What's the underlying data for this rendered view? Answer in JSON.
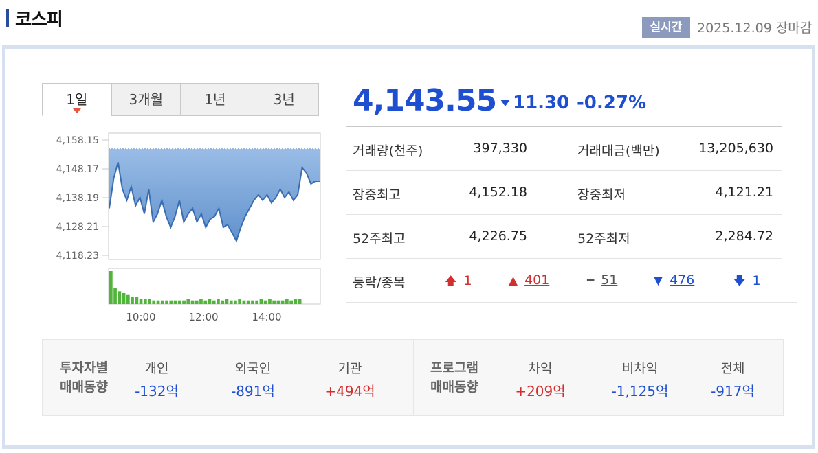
{
  "header": {
    "title": "코스피",
    "realtime_badge": "실시간",
    "status": "2025.12.09 장마감"
  },
  "tabs": [
    "1일",
    "3개월",
    "1년",
    "3년"
  ],
  "quote": {
    "price": "4,143.55",
    "change": "11.30",
    "change_pct": "-0.27%",
    "direction": "down"
  },
  "stats": [
    {
      "k1": "거래량(천주)",
      "v1": "397,330",
      "k2": "거래대금(백만)",
      "v2": "13,205,630"
    },
    {
      "k1": "장중최고",
      "v1": "4,152.18",
      "k2": "장중최저",
      "v2": "4,121.21"
    },
    {
      "k1": "52주최고",
      "v1": "4,226.75",
      "k2": "52주최저",
      "v2": "2,284.72"
    }
  ],
  "breadth": {
    "label": "등락/종목",
    "upper_limit": "1",
    "up": "401",
    "unchanged": "51",
    "down": "476",
    "lower_limit": "1"
  },
  "investor": {
    "title_line1": "투자자별",
    "title_line2": "매매동향",
    "cols": [
      {
        "label": "개인",
        "value": "-132억"
      },
      {
        "label": "외국인",
        "value": "-891억"
      },
      {
        "label": "기관",
        "value": "+494억"
      }
    ]
  },
  "program": {
    "title_line1": "프로그램",
    "title_line2": "매매동향",
    "cols": [
      {
        "label": "차익",
        "value": "+209억"
      },
      {
        "label": "비차익",
        "value": "-1,125억"
      },
      {
        "label": "전체",
        "value": "-917억"
      }
    ]
  },
  "colors": {
    "down": "#1f4fd1",
    "up": "#d32f2f",
    "line": "#3a6db3",
    "volume": "#52b53b",
    "reference": "#7f9fd6"
  },
  "chart_data": {
    "type": "area",
    "y_ticks": [
      "4,158.15",
      "4,148.17",
      "4,138.19",
      "4,128.21",
      "4,118.23"
    ],
    "x_ticks": [
      "10:00",
      "12:00",
      "14:00"
    ],
    "ylim": [
      4118.23,
      4158.15
    ],
    "reference_value": 4154.85,
    "series": [
      {
        "values": [
          4133,
          4144,
          4150,
          4140,
          4136,
          4141,
          4134,
          4137,
          4131,
          4140,
          4128,
          4131,
          4136,
          4130,
          4126,
          4130,
          4136,
          4128,
          4131,
          4133,
          4128,
          4131,
          4126,
          4129,
          4130,
          4133,
          4126,
          4127,
          4124,
          4121,
          4126,
          4130,
          4133,
          4136,
          4138,
          4136,
          4138,
          4135,
          4137,
          4140,
          4137,
          4139,
          4136,
          4138,
          4148,
          4146,
          4142,
          4143,
          4143
        ]
      }
    ],
    "volume": [
      18,
      9,
      7,
      6,
      5,
      4,
      4,
      3,
      3,
      3,
      2,
      2,
      2,
      2,
      2,
      2,
      2,
      2,
      3,
      2,
      2,
      3,
      2,
      3,
      2,
      3,
      2,
      3,
      2,
      2,
      3,
      2,
      2,
      2,
      2,
      3,
      2,
      3,
      2,
      2,
      2,
      3,
      2,
      3,
      3,
      2,
      2,
      3,
      2
    ]
  }
}
